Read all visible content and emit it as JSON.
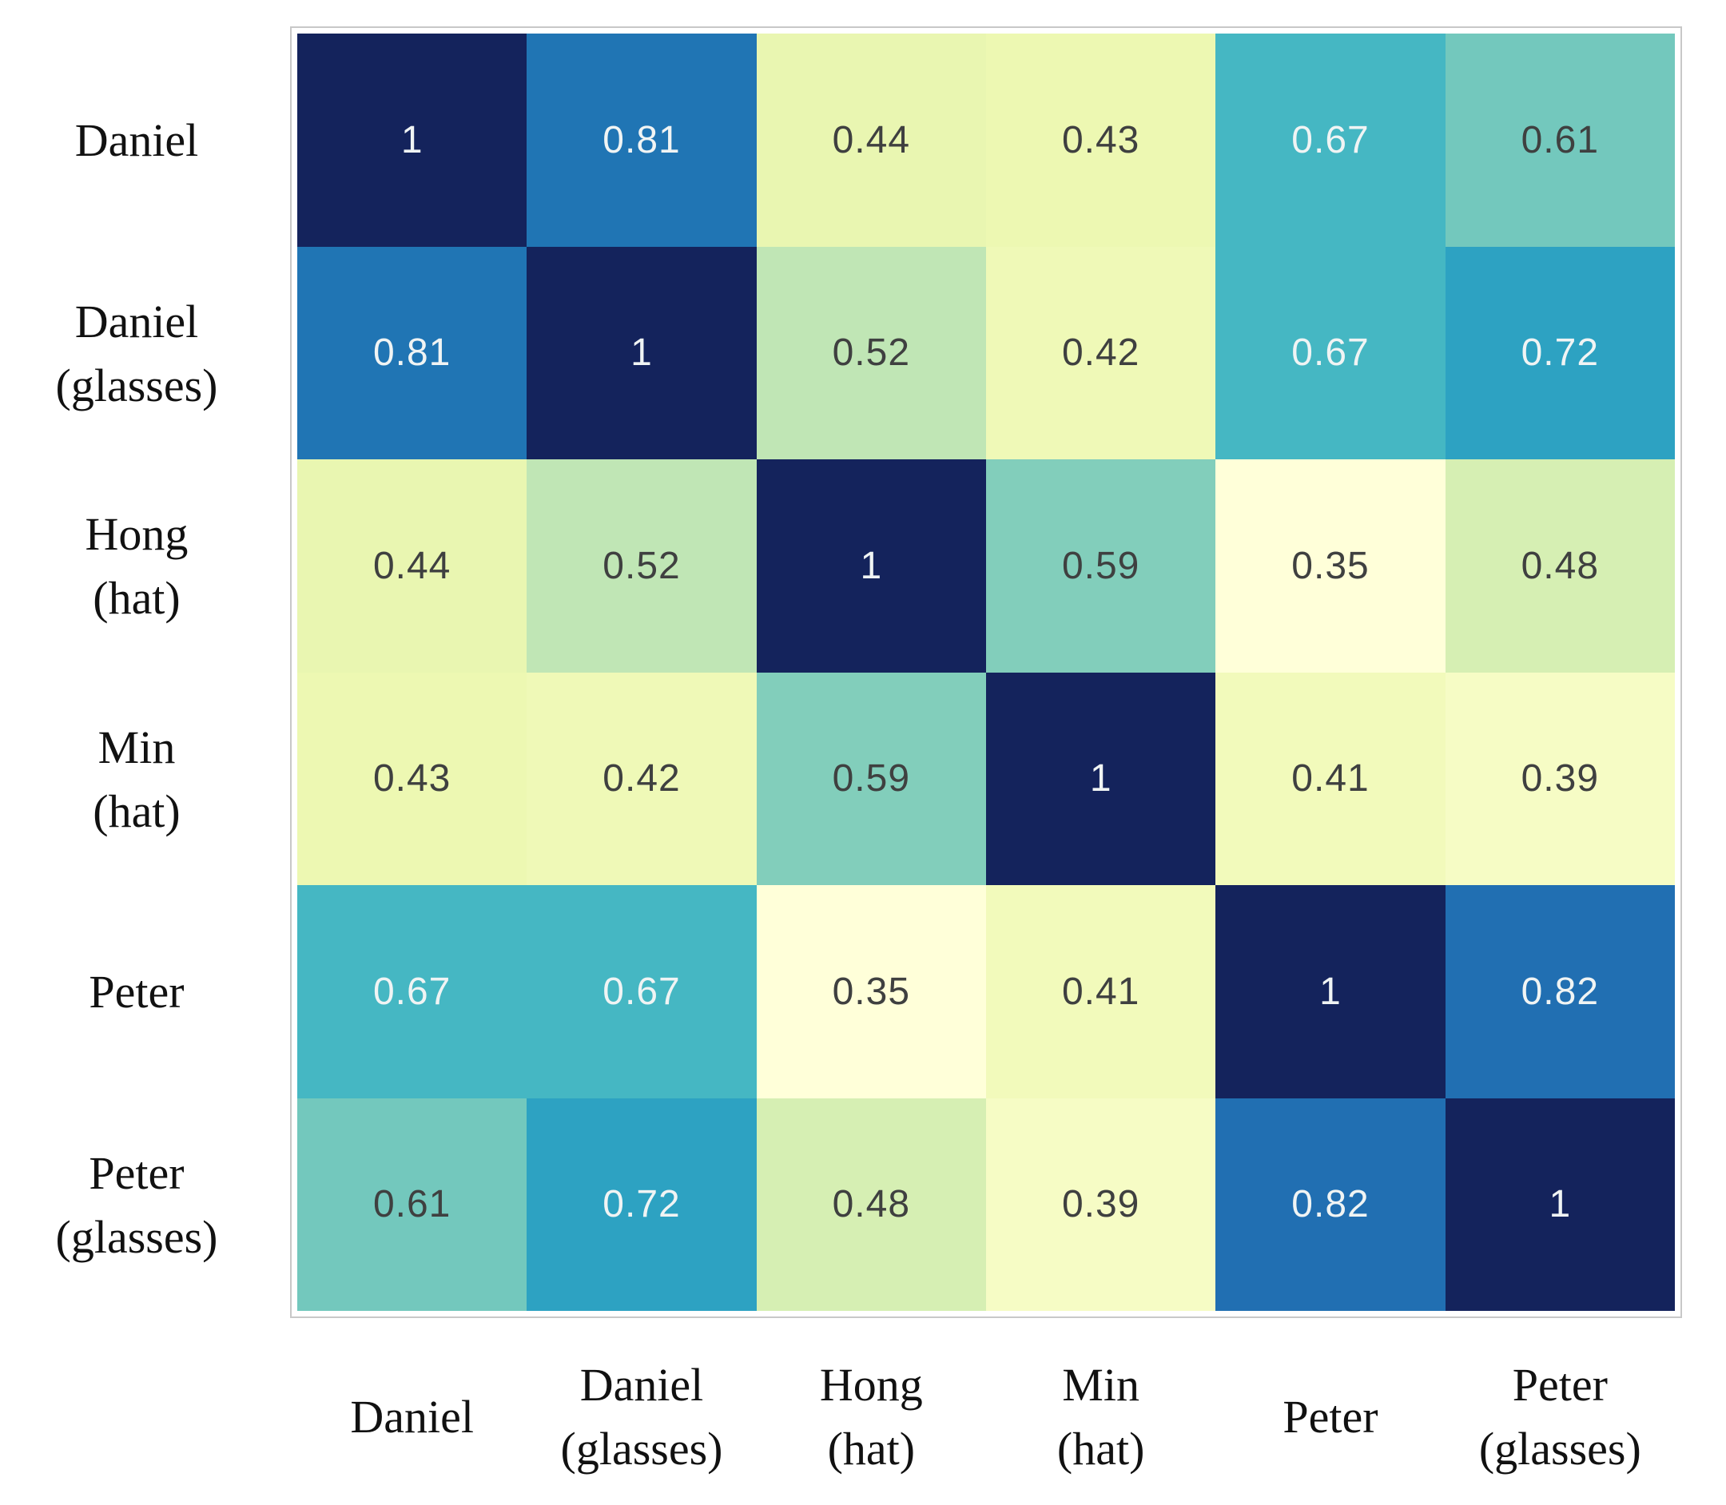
{
  "figure": {
    "background": "#ffffff",
    "frame_color": "#c8c8c8",
    "axis_label_color": "#111111"
  },
  "chart_data": {
    "type": "heatmap",
    "title": "",
    "xlabel": "",
    "ylabel": "",
    "x_categories": [
      "Daniel",
      "Daniel (glasses)",
      "Hong (hat)",
      "Min (hat)",
      "Peter",
      "Peter (glasses)"
    ],
    "y_categories": [
      "Daniel",
      "Daniel (glasses)",
      "Hong (hat)",
      "Min (hat)",
      "Peter",
      "Peter (glasses)"
    ],
    "x_label_lines": [
      [
        "Daniel"
      ],
      [
        "Daniel",
        "(glasses)"
      ],
      [
        "Hong",
        "(hat)"
      ],
      [
        "Min",
        "(hat)"
      ],
      [
        "Peter"
      ],
      [
        "Peter",
        "(glasses)"
      ]
    ],
    "y_label_lines": [
      [
        "Daniel"
      ],
      [
        "Daniel",
        "(glasses)"
      ],
      [
        "Hong",
        "(hat)"
      ],
      [
        "Min",
        "(hat)"
      ],
      [
        "Peter"
      ],
      [
        "Peter",
        "(glasses)"
      ]
    ],
    "matrix": [
      [
        1,
        0.81,
        0.44,
        0.43,
        0.67,
        0.61
      ],
      [
        0.81,
        1,
        0.52,
        0.42,
        0.67,
        0.72
      ],
      [
        0.44,
        0.52,
        1,
        0.59,
        0.35,
        0.48
      ],
      [
        0.43,
        0.42,
        0.59,
        1,
        0.41,
        0.39
      ],
      [
        0.67,
        0.67,
        0.35,
        0.41,
        1,
        0.82
      ],
      [
        0.61,
        0.72,
        0.48,
        0.39,
        0.82,
        1
      ]
    ],
    "vmin": 0.35,
    "vmax": 1,
    "colormap": {
      "name": "YlGnBu",
      "stops": [
        {
          "pos": 0,
          "color": "#ffffd9"
        },
        {
          "pos": 0.125,
          "color": "#edf8b1"
        },
        {
          "pos": 0.25,
          "color": "#c7e9b4"
        },
        {
          "pos": 0.375,
          "color": "#7fcdbb"
        },
        {
          "pos": 0.5,
          "color": "#41b6c4"
        },
        {
          "pos": 0.625,
          "color": "#1d91c0"
        },
        {
          "pos": 0.75,
          "color": "#2266ae"
        },
        {
          "pos": 0.875,
          "color": "#253494"
        },
        {
          "pos": 1,
          "color": "#14235c"
        }
      ]
    },
    "annotations": {
      "light_text_color": "#f0f4f4",
      "dark_text_color": "#3f4040",
      "light_text_min_value": 0.67
    },
    "legend": "none",
    "grid": "off"
  }
}
